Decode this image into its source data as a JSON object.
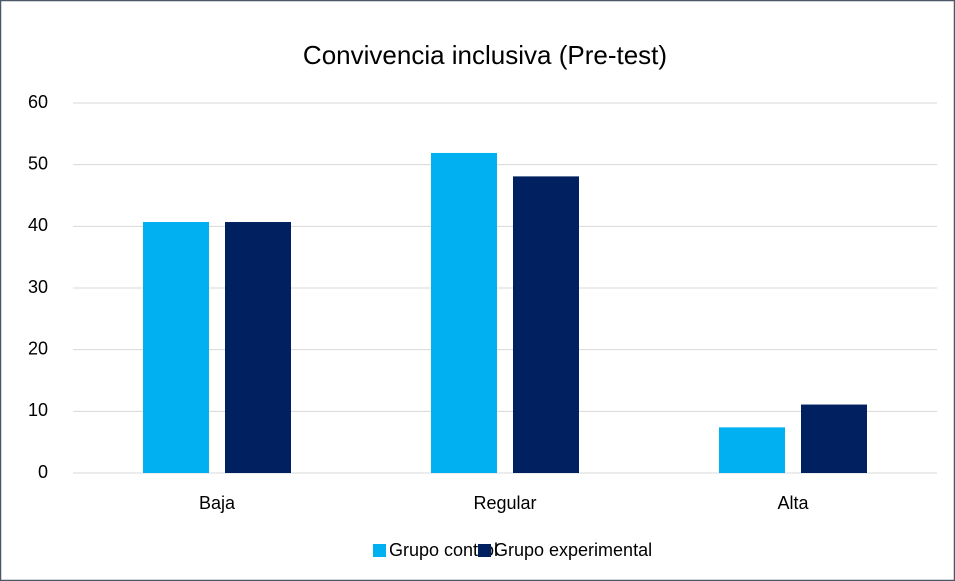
{
  "chart_data": {
    "type": "bar",
    "title": "Convivencia inclusiva (Pre-test)",
    "categories": [
      "Baja",
      "Regular",
      "Alta"
    ],
    "series": [
      {
        "name": "Grupo control",
        "color": "#00b0f0",
        "values": [
          40.7,
          51.9,
          7.4
        ]
      },
      {
        "name": "Grupo experimental",
        "color": "#002060",
        "values": [
          40.7,
          48.1,
          11.1
        ]
      }
    ],
    "ylim": [
      0,
      60
    ],
    "yticks": [
      0,
      10,
      20,
      30,
      40,
      50,
      60
    ],
    "grid": true,
    "legend": "bottom"
  }
}
